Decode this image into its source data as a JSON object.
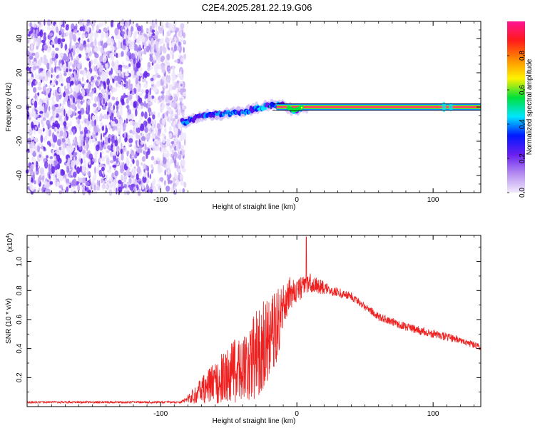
{
  "title": "C2E4.2025.281.22.19.G06",
  "chart_data": [
    {
      "type": "heatmap",
      "name": "spectrogram",
      "xlabel": "Height of straight line (km)",
      "ylabel": "Frequency (Hz)",
      "xlim": [
        -198,
        135
      ],
      "ylim": [
        -50,
        50
      ],
      "xticks": [
        -100,
        0,
        100
      ],
      "yticks": [
        -40,
        -20,
        0,
        20,
        40
      ],
      "xtick_labels": [
        "-100",
        "0",
        "100"
      ],
      "ytick_labels": [
        "-40",
        "-20",
        "0",
        "20",
        "40"
      ],
      "noise_region_x": [
        -198,
        -82
      ],
      "signal_track": [
        {
          "x": -82,
          "f": -9
        },
        {
          "x": -70,
          "f": -5
        },
        {
          "x": -55,
          "f": -4
        },
        {
          "x": -40,
          "f": -3
        },
        {
          "x": -30,
          "f": -1
        },
        {
          "x": -20,
          "f": 1
        },
        {
          "x": -10,
          "f": 1
        },
        {
          "x": -2,
          "f": -2
        },
        {
          "x": 5,
          "f": 0
        },
        {
          "x": 30,
          "f": 0
        },
        {
          "x": 80,
          "f": 0
        },
        {
          "x": 135,
          "f": 0
        }
      ],
      "colorbar": {
        "label": "Normalized spectral amplitude",
        "range": [
          0,
          1
        ],
        "ticks": [
          0.0,
          0.2,
          0.4,
          0.6,
          0.8
        ],
        "tick_labels": [
          "0.0",
          "0.2",
          "0.4",
          "0.6",
          "0.8"
        ],
        "colors": [
          "#f2eafc",
          "#b48cf0",
          "#6a1ff0",
          "#0018ff",
          "#00e6ff",
          "#00e03a",
          "#fff200",
          "#ff8c00",
          "#ff1a1a",
          "#ff1493"
        ]
      }
    },
    {
      "type": "line",
      "name": "snr",
      "xlabel": "Height of straight line (km)",
      "ylabel": "SNR (10 * v/v)",
      "y_multiplier": "(x10",
      "y_multiplier_exp": "4",
      "y_multiplier_close": ")",
      "xlim": [
        -198,
        135
      ],
      "ylim": [
        0,
        1.18
      ],
      "xticks": [
        -100,
        0,
        100
      ],
      "yticks": [
        0.2,
        0.4,
        0.6,
        0.8,
        1.0
      ],
      "xtick_labels": [
        "-100",
        "0",
        "100"
      ],
      "ytick_labels": [
        "0.2",
        "0.4",
        "0.6",
        "0.8",
        "1.0"
      ],
      "color": "#ee2020",
      "envelope": [
        {
          "x": -198,
          "y": 0.03,
          "amp": 0.01
        },
        {
          "x": -85,
          "y": 0.03,
          "amp": 0.01
        },
        {
          "x": -75,
          "y": 0.08,
          "amp": 0.06
        },
        {
          "x": -65,
          "y": 0.14,
          "amp": 0.12
        },
        {
          "x": -50,
          "y": 0.22,
          "amp": 0.2
        },
        {
          "x": -35,
          "y": 0.3,
          "amp": 0.28
        },
        {
          "x": -25,
          "y": 0.42,
          "amp": 0.32
        },
        {
          "x": -15,
          "y": 0.55,
          "amp": 0.25
        },
        {
          "x": -8,
          "y": 0.75,
          "amp": 0.15
        },
        {
          "x": 0,
          "y": 0.8,
          "amp": 0.12
        },
        {
          "x": 10,
          "y": 0.85,
          "amp": 0.1
        },
        {
          "x": 25,
          "y": 0.8,
          "amp": 0.05
        },
        {
          "x": 40,
          "y": 0.76,
          "amp": 0.04
        },
        {
          "x": 60,
          "y": 0.62,
          "amp": 0.04
        },
        {
          "x": 80,
          "y": 0.55,
          "amp": 0.04
        },
        {
          "x": 100,
          "y": 0.5,
          "amp": 0.04
        },
        {
          "x": 115,
          "y": 0.47,
          "amp": 0.04
        },
        {
          "x": 135,
          "y": 0.41,
          "amp": 0.03
        }
      ],
      "peak": {
        "x": 7,
        "y": 1.17
      }
    }
  ]
}
